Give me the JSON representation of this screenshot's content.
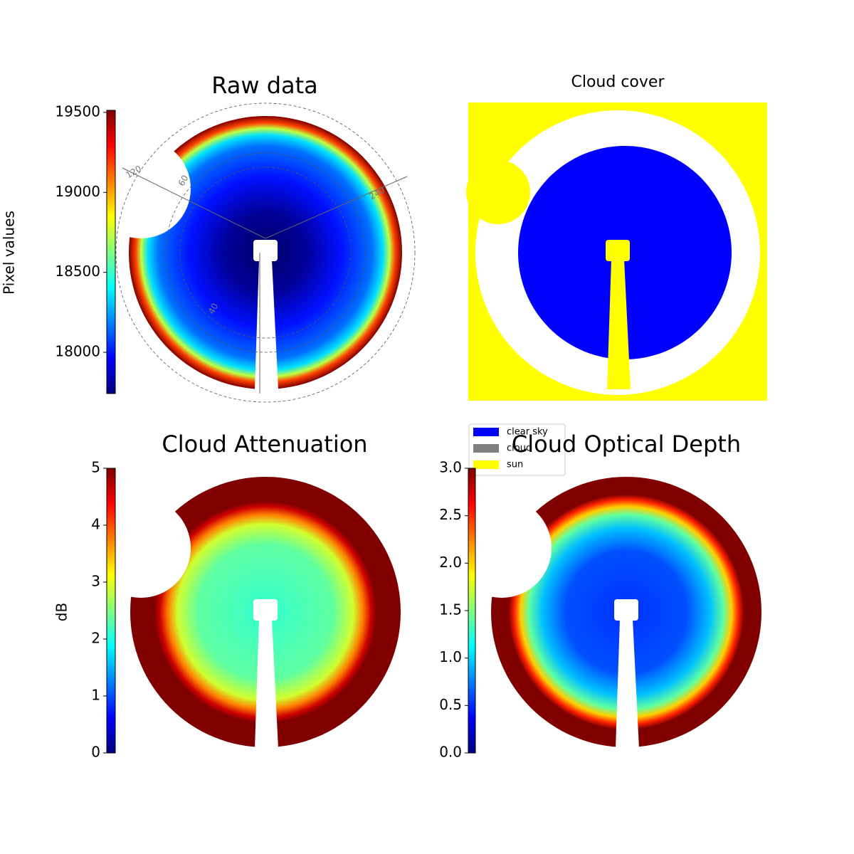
{
  "chart_data": [
    {
      "type": "image",
      "title": "Raw data",
      "colorbar_label": "Pixel values",
      "colormap": "jet",
      "ylim": [
        17742,
        19513
      ],
      "yticks": [
        18000,
        18500,
        19000,
        19500
      ],
      "annotations": [
        "120",
        "60",
        "240",
        "40"
      ]
    },
    {
      "type": "categorical-image",
      "title": "Cloud cover",
      "legend": [
        {
          "name": "clear sky",
          "color": "#0000ff"
        },
        {
          "name": "cloud",
          "color": "#808080"
        },
        {
          "name": "sun",
          "color": "#ffff00"
        }
      ]
    },
    {
      "type": "image",
      "title": "Cloud Attenuation",
      "colorbar_label": "dB",
      "colormap": "jet",
      "ylim": [
        0,
        5
      ],
      "yticks": [
        0,
        1,
        2,
        3,
        4,
        5
      ]
    },
    {
      "type": "image",
      "title": "Cloud Optical Depth",
      "colormap": "jet",
      "ylim": [
        0,
        3
      ],
      "yticks": [
        {
          "value": 0,
          "label": "0.0"
        },
        {
          "value": 0.5,
          "label": "0.5"
        },
        {
          "value": 1,
          "label": "1.0"
        },
        {
          "value": 1.5,
          "label": "1.5"
        },
        {
          "value": 2,
          "label": "2.0"
        },
        {
          "value": 2.5,
          "label": "2.5"
        },
        {
          "value": 3,
          "label": "3.0"
        }
      ]
    }
  ]
}
